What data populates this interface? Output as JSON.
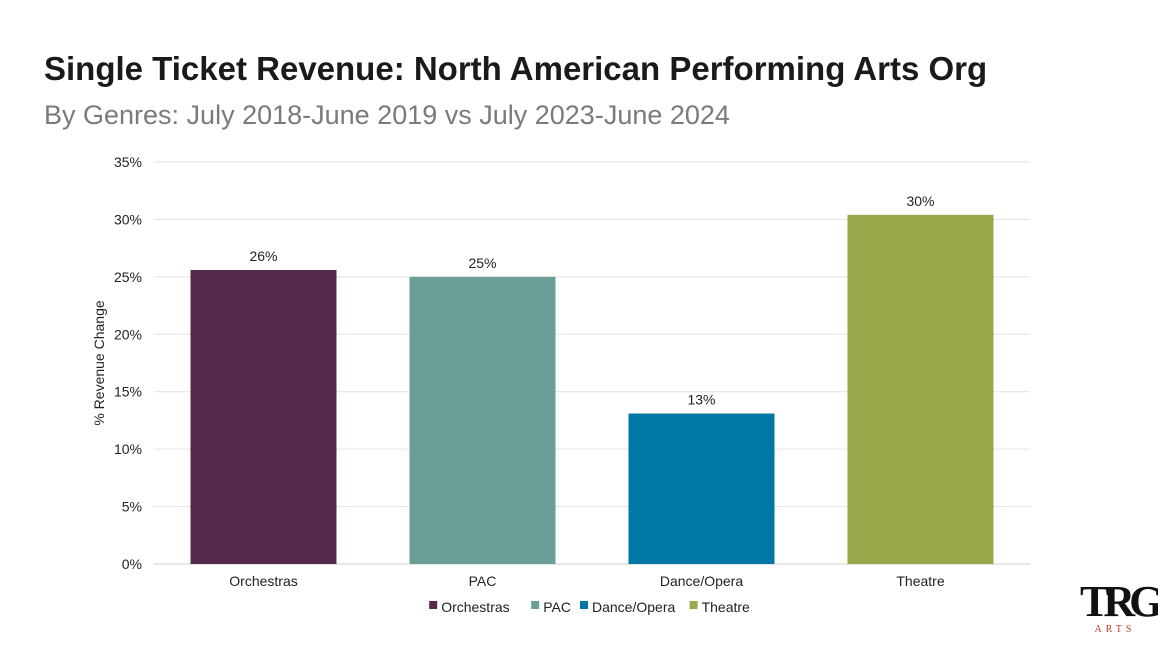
{
  "header": {
    "title": "Single Ticket Revenue: North American Performing Arts Org",
    "subtitle": "By Genres: July 2018-June 2019 vs July 2023-June 2024"
  },
  "logo": {
    "mark": "TRG",
    "sub": "ARTS"
  },
  "chart_data": {
    "type": "bar",
    "title": "Single Ticket Revenue: North American Performing Arts Org",
    "subtitle": "By Genres: July 2018-June 2019 vs July 2023-June 2024",
    "xlabel": "",
    "ylabel": "% Revenue Change",
    "ylim": [
      0,
      35
    ],
    "yticks": [
      "0%",
      "5%",
      "10%",
      "15%",
      "20%",
      "25%",
      "30%",
      "35%"
    ],
    "ytick_values": [
      0,
      5,
      10,
      15,
      20,
      25,
      30,
      35
    ],
    "categories": [
      "Orchestras",
      "PAC",
      "Dance/Opera",
      "Theatre"
    ],
    "values": [
      25.6,
      25.0,
      13.1,
      30.4
    ],
    "data_labels": [
      "26%",
      "25%",
      "13%",
      "30%"
    ],
    "colors": [
      "#57294b",
      "#6a9e96",
      "#0077a5",
      "#99a84a"
    ],
    "grid": true,
    "legend": {
      "placement": "bottom",
      "entries": [
        "Orchestras",
        "PAC",
        "Dance/Opera",
        "Theatre"
      ]
    }
  }
}
